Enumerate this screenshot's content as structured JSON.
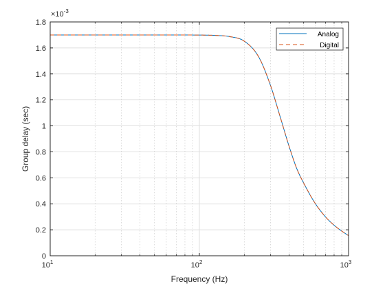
{
  "chart_data": {
    "type": "line",
    "xlabel": "Frequency (Hz)",
    "ylabel": "Group delay (sec)",
    "x_scale": "log",
    "xlim": [
      10,
      1000
    ],
    "ylim": [
      0,
      1.8
    ],
    "y_multiplier": "×10",
    "y_multiplier_exponent": "-3",
    "x_ticks": [
      {
        "base": "10",
        "exp": "1"
      },
      {
        "base": "10",
        "exp": "2"
      },
      {
        "base": "10",
        "exp": "3"
      }
    ],
    "y_ticks": [
      "0",
      "0.2",
      "0.4",
      "0.6",
      "0.8",
      "1",
      "1.2",
      "1.4",
      "1.6",
      "1.8"
    ],
    "y_tick_values": [
      0,
      0.2,
      0.4,
      0.6,
      0.8,
      1.0,
      1.2,
      1.4,
      1.6,
      1.8
    ],
    "grid": true,
    "x_minor_grid": true,
    "legend_position": "top-right",
    "series": [
      {
        "name": "Analog",
        "color": "#0072BD",
        "style": "solid",
        "x": [
          10,
          20,
          50,
          100,
          130,
          160,
          200,
          250,
          300,
          350,
          400,
          450,
          500,
          600,
          700,
          800,
          900,
          1000
        ],
        "y": [
          1.7,
          1.7,
          1.7,
          1.699,
          1.696,
          1.687,
          1.652,
          1.53,
          1.31,
          1.06,
          0.84,
          0.67,
          0.56,
          0.4,
          0.3,
          0.235,
          0.19,
          0.155
        ]
      },
      {
        "name": "Digital",
        "color": "#D95319",
        "style": "dashed",
        "x": [
          10,
          20,
          50,
          100,
          130,
          160,
          200,
          250,
          300,
          350,
          400,
          450,
          500,
          600,
          700,
          800,
          900,
          1000
        ],
        "y": [
          1.7,
          1.7,
          1.7,
          1.699,
          1.696,
          1.687,
          1.652,
          1.53,
          1.31,
          1.06,
          0.84,
          0.67,
          0.56,
          0.4,
          0.3,
          0.235,
          0.19,
          0.155
        ]
      }
    ]
  }
}
